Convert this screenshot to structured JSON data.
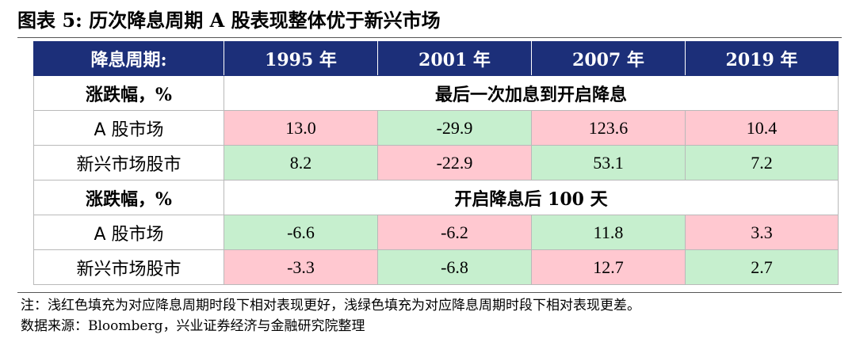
{
  "title": "图表 5: 历次降息周期 A 股表现整体优于新兴市场",
  "header": {
    "label": "降息周期:",
    "columns": [
      "1995 年",
      "2001 年",
      "2007 年",
      "2019 年"
    ]
  },
  "sections": [
    {
      "label": "涨跌幅，%",
      "title": "最后一次加息到开启降息",
      "rows": [
        {
          "label": "A 股市场",
          "values": [
            "13.0",
            "-29.9",
            "123.6",
            "10.4"
          ],
          "fills": [
            "red",
            "green",
            "red",
            "red"
          ]
        },
        {
          "label": "新兴市场股市",
          "values": [
            "8.2",
            "-22.9",
            "53.1",
            "7.2"
          ],
          "fills": [
            "green",
            "red",
            "green",
            "green"
          ]
        }
      ]
    },
    {
      "label": "涨跌幅，%",
      "title": "开启降息后 100 天",
      "rows": [
        {
          "label": "A 股市场",
          "values": [
            "-6.6",
            "-6.2",
            "11.8",
            "3.3"
          ],
          "fills": [
            "green",
            "red",
            "green",
            "red"
          ]
        },
        {
          "label": "新兴市场股市",
          "values": [
            "-3.3",
            "-6.8",
            "12.7",
            "2.7"
          ],
          "fills": [
            "red",
            "green",
            "red",
            "green"
          ]
        }
      ]
    }
  ],
  "colors": {
    "header_bg": "#1c2f79",
    "red_fill": "#ffc8d0",
    "green_fill": "#c6efce"
  },
  "note": "注：浅红色填充为对应降息周期时段下相对表现更好，浅绿色填充为对应降息周期时段下相对表现更差。",
  "source": "数据来源：Bloomberg，兴业证券经济与金融研究院整理"
}
